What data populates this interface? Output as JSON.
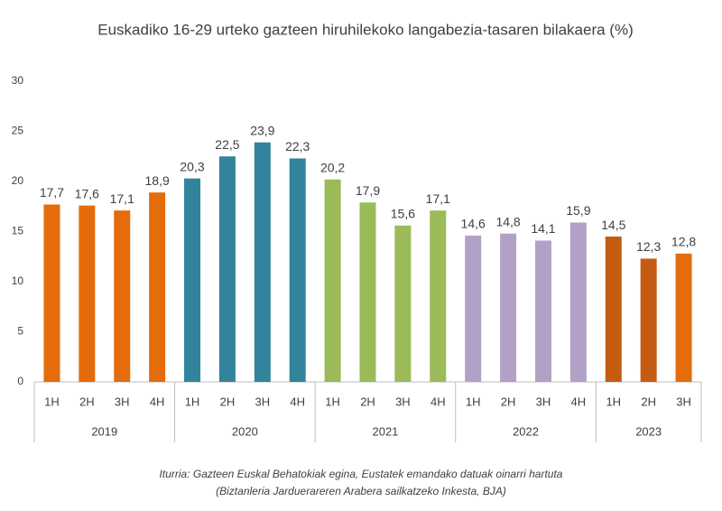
{
  "chart_data": {
    "type": "bar",
    "title": "Euskadiko 16-29 urteko gazteen hiruhilekoko langabezia-tasaren bilakaera (%)",
    "ylim": [
      0,
      30
    ],
    "yticks": [
      0,
      5,
      10,
      15,
      20,
      25,
      30
    ],
    "grid": false,
    "groups": [
      {
        "name": "2019",
        "categories": [
          "1H",
          "2H",
          "3H",
          "4H"
        ],
        "values": [
          17.7,
          17.6,
          17.1,
          18.9
        ],
        "value_labels": [
          "17,7",
          "17,6",
          "17,1",
          "18,9"
        ],
        "colors": [
          "#e46c0a",
          "#e46c0a",
          "#e46c0a",
          "#e46c0a"
        ]
      },
      {
        "name": "2020",
        "categories": [
          "1H",
          "2H",
          "3H",
          "4H"
        ],
        "values": [
          20.3,
          22.5,
          23.9,
          22.3
        ],
        "value_labels": [
          "20,3",
          "22,5",
          "23,9",
          "22,3"
        ],
        "colors": [
          "#31849b",
          "#31849b",
          "#31849b",
          "#31849b"
        ]
      },
      {
        "name": "2021",
        "categories": [
          "1H",
          "2H",
          "3H",
          "4H"
        ],
        "values": [
          20.2,
          17.9,
          15.6,
          17.1
        ],
        "value_labels": [
          "20,2",
          "17,9",
          "15,6",
          "17,1"
        ],
        "colors": [
          "#9bbb59",
          "#9bbb59",
          "#9bbb59",
          "#9bbb59"
        ]
      },
      {
        "name": "2022",
        "categories": [
          "1H",
          "2H",
          "3H",
          "4H"
        ],
        "values": [
          14.6,
          14.8,
          14.1,
          15.9
        ],
        "value_labels": [
          "14,6",
          "14,8",
          "14,1",
          "15,9"
        ],
        "colors": [
          "#b2a1c7",
          "#b2a1c7",
          "#b2a1c7",
          "#b2a1c7"
        ]
      },
      {
        "name": "2023",
        "categories": [
          "1H",
          "2H",
          "3H"
        ],
        "values": [
          14.5,
          12.3,
          12.8
        ],
        "value_labels": [
          "14,5",
          "12,3",
          "12,8"
        ],
        "colors": [
          "#c55a11",
          "#c55a11",
          "#e46c0a"
        ]
      }
    ],
    "source": [
      "Iturria: Gazteen Euskal Behatokiak egina, Eustatek emandako datuak oinarri hartuta",
      "(Biztanleria Jarduerareren Arabera sailkatzeko Inkesta, BJA)"
    ]
  }
}
